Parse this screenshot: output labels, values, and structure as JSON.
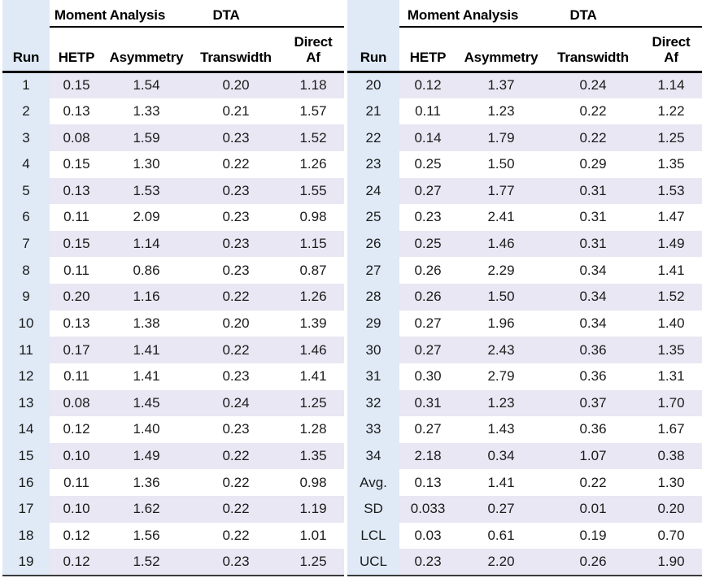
{
  "headers": {
    "group_moment": "Moment Analysis",
    "group_dta": "DTA",
    "run": "Run",
    "hetp": "HETP",
    "asymmetry": "Asymmetry",
    "transwidth": "Transwidth",
    "direct_af_line1": "Direct",
    "direct_af_line2": "Af"
  },
  "colors": {
    "run_column_bg": "#dfeaf6",
    "stripe_row_bg": "#e8e7f3",
    "header_rule": "#000000"
  },
  "tables": [
    {
      "side": "left",
      "rows": [
        [
          "1",
          "0.15",
          "1.54",
          "0.20",
          "1.18"
        ],
        [
          "2",
          "0.13",
          "1.33",
          "0.21",
          "1.57"
        ],
        [
          "3",
          "0.08",
          "1.59",
          "0.23",
          "1.52"
        ],
        [
          "4",
          "0.15",
          "1.30",
          "0.22",
          "1.26"
        ],
        [
          "5",
          "0.13",
          "1.53",
          "0.23",
          "1.55"
        ],
        [
          "6",
          "0.11",
          "2.09",
          "0.23",
          "0.98"
        ],
        [
          "7",
          "0.15",
          "1.14",
          "0.23",
          "1.15"
        ],
        [
          "8",
          "0.11",
          "0.86",
          "0.23",
          "0.87"
        ],
        [
          "9",
          "0.20",
          "1.16",
          "0.22",
          "1.26"
        ],
        [
          "10",
          "0.13",
          "1.38",
          "0.20",
          "1.39"
        ],
        [
          "11",
          "0.17",
          "1.41",
          "0.22",
          "1.46"
        ],
        [
          "12",
          "0.11",
          "1.41",
          "0.23",
          "1.41"
        ],
        [
          "13",
          "0.08",
          "1.45",
          "0.24",
          "1.25"
        ],
        [
          "14",
          "0.12",
          "1.40",
          "0.23",
          "1.28"
        ],
        [
          "15",
          "0.10",
          "1.49",
          "0.22",
          "1.35"
        ],
        [
          "16",
          "0.11",
          "1.36",
          "0.22",
          "0.98"
        ],
        [
          "17",
          "0.10",
          "1.62",
          "0.22",
          "1.19"
        ],
        [
          "18",
          "0.12",
          "1.56",
          "0.22",
          "1.01"
        ],
        [
          "19",
          "0.12",
          "1.52",
          "0.23",
          "1.25"
        ]
      ]
    },
    {
      "side": "right",
      "rows": [
        [
          "20",
          "0.12",
          "1.37",
          "0.24",
          "1.14"
        ],
        [
          "21",
          "0.11",
          "1.23",
          "0.22",
          "1.22"
        ],
        [
          "22",
          "0.14",
          "1.79",
          "0.22",
          "1.25"
        ],
        [
          "23",
          "0.25",
          "1.50",
          "0.29",
          "1.35"
        ],
        [
          "24",
          "0.27",
          "1.77",
          "0.31",
          "1.53"
        ],
        [
          "25",
          "0.23",
          "2.41",
          "0.31",
          "1.47"
        ],
        [
          "26",
          "0.25",
          "1.46",
          "0.31",
          "1.49"
        ],
        [
          "27",
          "0.26",
          "2.29",
          "0.34",
          "1.41"
        ],
        [
          "28",
          "0.26",
          "1.50",
          "0.34",
          "1.52"
        ],
        [
          "29",
          "0.27",
          "1.96",
          "0.34",
          "1.40"
        ],
        [
          "30",
          "0.27",
          "2.43",
          "0.36",
          "1.35"
        ],
        [
          "31",
          "0.30",
          "2.79",
          "0.36",
          "1.31"
        ],
        [
          "32",
          "0.31",
          "1.23",
          "0.37",
          "1.70"
        ],
        [
          "33",
          "0.27",
          "1.43",
          "0.36",
          "1.67"
        ],
        [
          "34",
          "2.18",
          "0.34",
          "1.07",
          "0.38"
        ],
        [
          "Avg.",
          "0.13",
          "1.41",
          "0.22",
          "1.30"
        ],
        [
          "SD",
          "0.033",
          "0.27",
          "0.01",
          "0.20"
        ],
        [
          "LCL",
          "0.03",
          "0.61",
          "0.19",
          "0.70"
        ],
        [
          "UCL",
          "0.23",
          "2.20",
          "0.26",
          "1.90"
        ]
      ]
    }
  ]
}
